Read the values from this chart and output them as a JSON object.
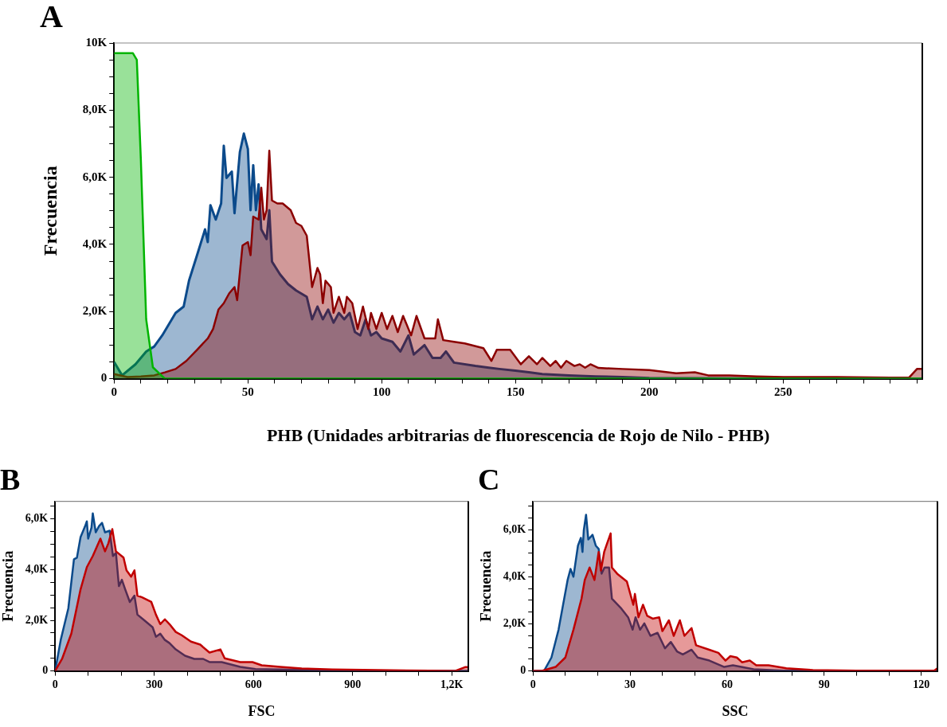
{
  "chart_data": [
    {
      "type": "area",
      "title": "A",
      "xlabel": "PHB (Unidades arbitrarias de fluorescencia de Rojo de Nilo - PHB)",
      "ylabel": "Frecuencia",
      "xlim": [
        0,
        302
      ],
      "ylim": [
        0,
        10000
      ],
      "xticks": [
        0,
        {
          "value": 10,
          "label": null
        },
        {
          "value": 20,
          "label": null
        },
        {
          "value": 30,
          "label": null
        },
        {
          "value": 40,
          "label": null
        },
        50,
        {
          "value": 60,
          "label": null
        },
        {
          "value": 70,
          "label": null
        },
        {
          "value": 80,
          "label": null
        },
        {
          "value": 90,
          "label": null
        },
        100,
        {
          "value": 110,
          "label": null
        },
        {
          "value": 120,
          "label": null
        },
        {
          "value": 130,
          "label": null
        },
        {
          "value": 140,
          "label": null
        },
        150,
        {
          "value": 160,
          "label": null
        },
        {
          "value": 170,
          "label": null
        },
        {
          "value": 180,
          "label": null
        },
        {
          "value": 190,
          "label": null
        },
        200,
        {
          "value": 210,
          "label": null
        },
        {
          "value": 220,
          "label": null
        },
        {
          "value": 230,
          "label": null
        },
        {
          "value": 240,
          "label": null
        },
        250,
        {
          "value": 260,
          "label": null
        },
        {
          "value": 270,
          "label": null
        },
        {
          "value": 280,
          "label": null
        },
        {
          "value": 290,
          "label": null
        },
        {
          "value": 300,
          "label": null
        }
      ],
      "yticks": [
        {
          "value": 0,
          "label": "0"
        },
        {
          "value": 500,
          "label": null
        },
        {
          "value": 1000,
          "label": null
        },
        {
          "value": 1500,
          "label": null
        },
        {
          "value": 2000,
          "label": "2,0K"
        },
        {
          "value": 2500,
          "label": null
        },
        {
          "value": 3000,
          "label": null
        },
        {
          "value": 3500,
          "label": null
        },
        {
          "value": 4000,
          "label": "4,0K"
        },
        {
          "value": 4500,
          "label": null
        },
        {
          "value": 5000,
          "label": null
        },
        {
          "value": 5500,
          "label": null
        },
        {
          "value": 6000,
          "label": "6,0K"
        },
        {
          "value": 6500,
          "label": null
        },
        {
          "value": 7000,
          "label": null
        },
        {
          "value": 7500,
          "label": null
        },
        {
          "value": 8000,
          "label": "8,0K"
        },
        {
          "value": 8500,
          "label": null
        },
        {
          "value": 9000,
          "label": null
        },
        {
          "value": 9500,
          "label": null
        },
        {
          "value": 10000,
          "label": "10K"
        }
      ],
      "series": [
        {
          "color": "#0b4a8b",
          "x": [
            0,
            3,
            8,
            12,
            15,
            18,
            23,
            26,
            28,
            31,
            34,
            35,
            36,
            38,
            40,
            41,
            42,
            44,
            45,
            47,
            48.5,
            50,
            51,
            52,
            53,
            54,
            55,
            57,
            58,
            59,
            62,
            65,
            68,
            72,
            74,
            76,
            78,
            80,
            82,
            84,
            86,
            88,
            90,
            92,
            94,
            96,
            98,
            100,
            104,
            107,
            110,
            112,
            116,
            119,
            122,
            124,
            127,
            135,
            140,
            144,
            150,
            155,
            160,
            170,
            180,
            190,
            200,
            250,
            302
          ],
          "values": [
            500,
            100,
            430,
            810,
            960,
            1290,
            1960,
            2150,
            2920,
            3680,
            4450,
            4070,
            5170,
            4740,
            5220,
            6940,
            5980,
            6170,
            4930,
            6750,
            7300,
            6840,
            5020,
            6360,
            5020,
            5790,
            4450,
            4160,
            5020,
            3490,
            3110,
            2820,
            2630,
            2440,
            1770,
            2150,
            1770,
            2060,
            1670,
            1960,
            1770,
            1960,
            1390,
            1290,
            1770,
            1290,
            1390,
            1200,
            1100,
            810,
            1290,
            720,
            1000,
            620,
            620,
            810,
            480,
            380,
            330,
            290,
            240,
            190,
            140,
            100,
            70,
            50,
            20,
            0,
            0
          ]
        },
        {
          "color": "#8b0000",
          "x": [
            0,
            5,
            10,
            15,
            19,
            23,
            27,
            31,
            35,
            37,
            39,
            41,
            43,
            45,
            46,
            48,
            50,
            51,
            52,
            54,
            55,
            56,
            57,
            58,
            59,
            61,
            63,
            66,
            68,
            70,
            72,
            74,
            76,
            77,
            78,
            79,
            81,
            82,
            84,
            86,
            87,
            89,
            91,
            93,
            95,
            96,
            98,
            100,
            102,
            104,
            106,
            108,
            111,
            113,
            116,
            120,
            121,
            123,
            127,
            131,
            138,
            141,
            143,
            148,
            152,
            155,
            158,
            160,
            163,
            165,
            167,
            169,
            172,
            174,
            176,
            178,
            181,
            190,
            200,
            210,
            217,
            222,
            230,
            240,
            250,
            270,
            290,
            297,
            300,
            302
          ],
          "values": [
            140,
            50,
            70,
            100,
            190,
            290,
            530,
            860,
            1200,
            1480,
            2060,
            2250,
            2540,
            2730,
            2340,
            3970,
            4070,
            3680,
            4830,
            4740,
            5690,
            4740,
            5020,
            6790,
            5310,
            5220,
            5220,
            5020,
            4640,
            4550,
            4260,
            2730,
            3300,
            3110,
            2250,
            2920,
            2730,
            1960,
            2440,
            1960,
            2440,
            2250,
            1480,
            2150,
            1480,
            1960,
            1480,
            1960,
            1480,
            1870,
            1390,
            1870,
            1290,
            1870,
            1200,
            1200,
            1770,
            1150,
            1100,
            1050,
            910,
            530,
            860,
            860,
            430,
            670,
            430,
            620,
            380,
            530,
            330,
            530,
            380,
            430,
            330,
            430,
            320,
            290,
            260,
            160,
            190,
            100,
            100,
            70,
            50,
            50,
            30,
            30,
            290,
            290
          ]
        },
        {
          "color": "#00b400",
          "x": [
            0,
            7,
            8.5,
            10,
            12,
            14.5,
            19,
            302
          ],
          "values": [
            9700,
            9700,
            9500,
            6550,
            1770,
            340,
            0,
            0
          ]
        }
      ]
    },
    {
      "type": "area",
      "title": "B",
      "xlabel": "FSC",
      "ylabel": "Frecuencia",
      "xlim": [
        0,
        1250
      ],
      "ylim": [
        0,
        6700
      ],
      "xticks": [
        0,
        {
          "value": 100,
          "label": null
        },
        {
          "value": 200,
          "label": null
        },
        300,
        {
          "value": 400,
          "label": null
        },
        {
          "value": 500,
          "label": null
        },
        600,
        {
          "value": 700,
          "label": null
        },
        {
          "value": 800,
          "label": null
        },
        900,
        {
          "value": 1000,
          "label": null
        },
        {
          "value": 1100,
          "label": null
        },
        {
          "value": 1200,
          "label": "1,2K"
        }
      ],
      "yticks": [
        {
          "value": 0,
          "label": "0"
        },
        {
          "value": 500,
          "label": null
        },
        {
          "value": 1000,
          "label": null
        },
        {
          "value": 1500,
          "label": null
        },
        {
          "value": 2000,
          "label": "2,0K"
        },
        {
          "value": 2500,
          "label": null
        },
        {
          "value": 3000,
          "label": null
        },
        {
          "value": 3500,
          "label": null
        },
        {
          "value": 4000,
          "label": "4,0K"
        },
        {
          "value": 4500,
          "label": null
        },
        {
          "value": 5000,
          "label": null
        },
        {
          "value": 5500,
          "label": null
        },
        {
          "value": 6000,
          "label": "6,0K"
        },
        {
          "value": 6500,
          "label": null
        }
      ],
      "series": [
        {
          "color": "#0b4a8b",
          "x": [
            0,
            17,
            40,
            57,
            66,
            77,
            91,
            96,
            100,
            110,
            114,
            123,
            133,
            142,
            151,
            165,
            175,
            184,
            193,
            202,
            212,
            226,
            240,
            249,
            272,
            295,
            305,
            318,
            332,
            346,
            365,
            393,
            421,
            448,
            467,
            504,
            560,
            606,
            746,
            931,
            1250
          ],
          "values": [
            0,
            1225,
            2475,
            4410,
            4475,
            5290,
            5725,
            5910,
            5225,
            5660,
            6225,
            5475,
            5725,
            5850,
            5475,
            5540,
            4540,
            4660,
            3350,
            3600,
            3225,
            2725,
            2975,
            2225,
            1975,
            1725,
            1350,
            1475,
            1225,
            1100,
            850,
            600,
            475,
            475,
            350,
            350,
            160,
            75,
            40,
            0,
            0
          ]
        },
        {
          "color": "#c00000",
          "x": [
            0,
            21,
            49,
            77,
            96,
            114,
            137,
            151,
            161,
            173,
            184,
            207,
            216,
            230,
            240,
            249,
            263,
            291,
            305,
            318,
            332,
            346,
            365,
            383,
            411,
            439,
            467,
            500,
            513,
            560,
            597,
            625,
            681,
            746,
            838,
            931,
            1210,
            1240,
            1250
          ],
          "values": [
            0,
            475,
            1475,
            3225,
            4100,
            4540,
            5225,
            4725,
            5040,
            5600,
            4725,
            4475,
            3975,
            3725,
            3975,
            2975,
            2910,
            2725,
            2225,
            1850,
            2040,
            1850,
            1540,
            1410,
            1160,
            1040,
            725,
            850,
            500,
            350,
            350,
            225,
            160,
            100,
            60,
            40,
            0,
            150,
            150
          ]
        }
      ]
    },
    {
      "type": "area",
      "title": "C",
      "xlabel": "SSC",
      "ylabel": "Frecuencia",
      "xlim": [
        0,
        125
      ],
      "ylim": [
        0,
        7200
      ],
      "xticks": [
        0,
        {
          "value": 10,
          "label": null
        },
        {
          "value": 20,
          "label": null
        },
        30,
        {
          "value": 40,
          "label": null
        },
        {
          "value": 50,
          "label": null
        },
        60,
        {
          "value": 70,
          "label": null
        },
        {
          "value": 80,
          "label": null
        },
        90,
        {
          "value": 100,
          "label": null
        },
        {
          "value": 110,
          "label": null
        },
        120
      ],
      "yticks": [
        {
          "value": 0,
          "label": "0"
        },
        {
          "value": 500,
          "label": null
        },
        {
          "value": 1000,
          "label": null
        },
        {
          "value": 1500,
          "label": null
        },
        {
          "value": 2000,
          "label": "2,0K"
        },
        {
          "value": 2500,
          "label": null
        },
        {
          "value": 3000,
          "label": null
        },
        {
          "value": 3500,
          "label": null
        },
        {
          "value": 4000,
          "label": "4,0K"
        },
        {
          "value": 4500,
          "label": null
        },
        {
          "value": 5000,
          "label": null
        },
        {
          "value": 5500,
          "label": null
        },
        {
          "value": 6000,
          "label": "6,0K"
        },
        {
          "value": 6500,
          "label": null
        },
        {
          "value": 7000,
          "label": null
        }
      ],
      "series": [
        {
          "color": "#0b4a8b",
          "x": [
            0,
            3.4,
            5.7,
            7.9,
            9.3,
            10.7,
            11.6,
            12.5,
            13.9,
            14.8,
            15.3,
            15.7,
            16.4,
            17.1,
            18.4,
            19.4,
            20.3,
            21.2,
            22.1,
            23.5,
            24.4,
            27.1,
            29.4,
            30.8,
            31.7,
            33.1,
            34.4,
            36.3,
            38.5,
            40.8,
            42.6,
            44.5,
            46.3,
            49,
            50.9,
            54.5,
            59.1,
            61.8,
            68.2,
            77.4,
            125
          ],
          "values": [
            0,
            0,
            570,
            1750,
            2810,
            3860,
            4330,
            4000,
            5320,
            5650,
            5050,
            5970,
            6630,
            5580,
            5780,
            5320,
            5180,
            4130,
            4390,
            4390,
            3070,
            2680,
            2280,
            1750,
            2280,
            1750,
            2020,
            1490,
            1620,
            960,
            1230,
            830,
            700,
            900,
            570,
            440,
            170,
            240,
            70,
            10,
            0
          ]
        },
        {
          "color": "#c00000",
          "x": [
            0,
            3,
            7,
            10,
            12.5,
            15,
            16,
            17.5,
            19,
            20.3,
            21,
            22,
            23,
            24,
            24.4,
            26,
            29,
            31,
            31.5,
            32.6,
            34,
            35.3,
            37,
            39,
            40,
            42,
            43.5,
            45.4,
            46.8,
            49,
            50.4,
            54.5,
            57.3,
            59.5,
            61,
            63,
            64.6,
            67,
            69,
            72.8,
            78.3,
            86.5,
            100,
            124,
            125
          ],
          "values": [
            0,
            10,
            170,
            570,
            1750,
            3070,
            3860,
            4390,
            3860,
            5050,
            4260,
            5050,
            5450,
            5840,
            4390,
            4130,
            3800,
            2810,
            3270,
            2280,
            2810,
            2340,
            2220,
            2280,
            1690,
            2150,
            1490,
            2150,
            1490,
            1820,
            1090,
            900,
            770,
            440,
            630,
            570,
            370,
            440,
            240,
            240,
            110,
            40,
            10,
            10,
            110
          ]
        }
      ]
    }
  ]
}
